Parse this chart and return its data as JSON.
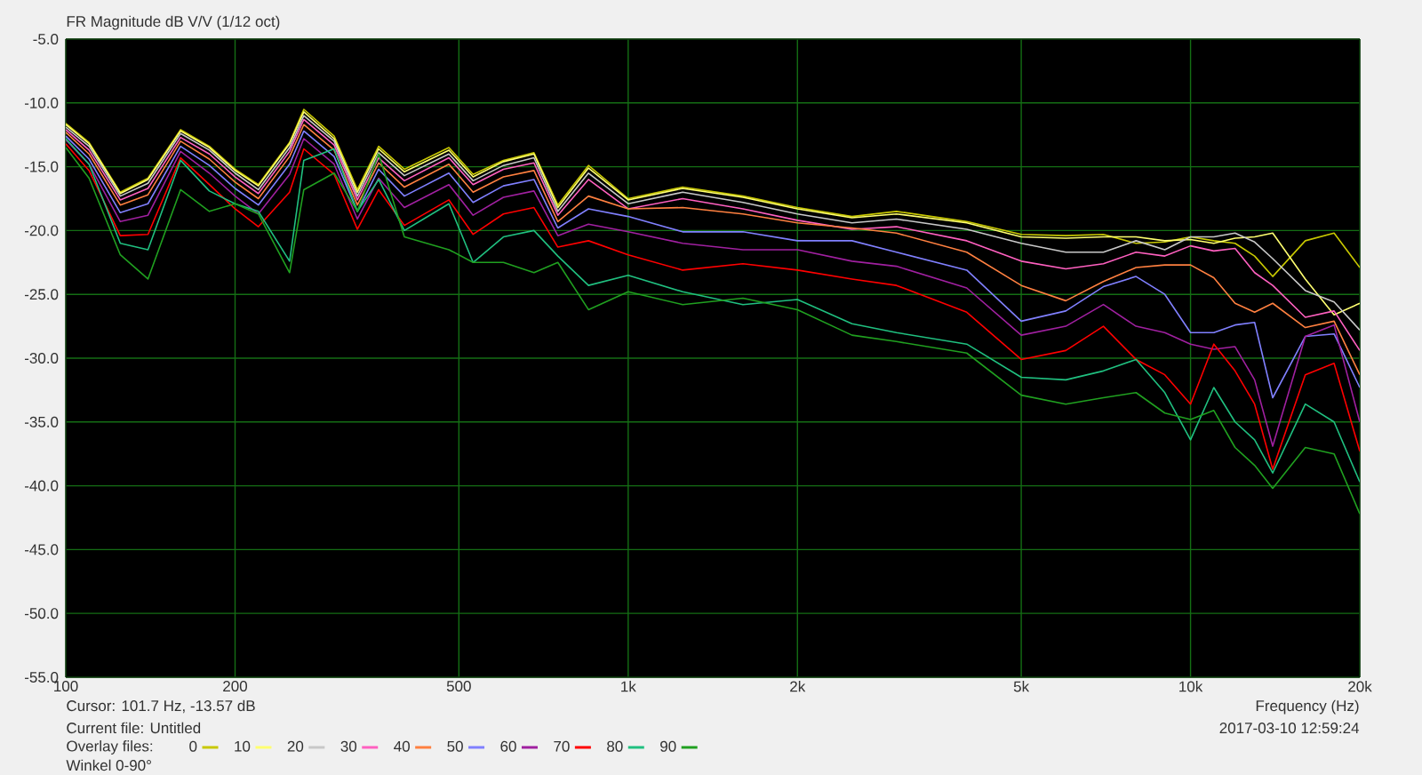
{
  "chart_data": {
    "type": "line",
    "title": "FR Magnitude dB V/V (1/12 oct)",
    "xlabel": "Frequency (Hz)",
    "legend_title": "Overlay files:",
    "annotations": [
      "Cursor: 101.7 Hz, -13.57 dB",
      "Current file: Untitled",
      "Winkel 0-90°",
      "2017-03-10 12:59:24"
    ],
    "log": "x",
    "grid": true,
    "legend": "bottom",
    "xlim": [
      100,
      20000
    ],
    "ylim": [
      -55,
      -5
    ],
    "xticks": [
      100,
      {
        "value": 200,
        "label": "200"
      },
      {
        "value": 500,
        "label": "500"
      },
      {
        "value": 1000,
        "label": "1k"
      },
      {
        "value": 2000,
        "label": "2k"
      },
      {
        "value": 5000,
        "label": "5k"
      },
      {
        "value": 10000,
        "label": "10k"
      },
      {
        "value": 20000,
        "label": "20k"
      }
    ],
    "yticks": [
      {
        "value": -55,
        "label": "-55.0"
      },
      {
        "value": -50,
        "label": "-50.0"
      },
      {
        "value": -45,
        "label": "-45.0"
      },
      {
        "value": -40,
        "label": "-40.0"
      },
      {
        "value": -35,
        "label": "-35.0"
      },
      {
        "value": -30,
        "label": "-30.0"
      },
      {
        "value": -25,
        "label": "-25.0"
      },
      {
        "value": -20,
        "label": "-20.0"
      },
      {
        "value": -15,
        "label": "-15.0"
      },
      {
        "value": -10,
        "label": "-10.0"
      },
      {
        "value": -5,
        "label": "-5.0"
      }
    ],
    "x": [
      100,
      110,
      125,
      140,
      160,
      180,
      200,
      220,
      250,
      265,
      300,
      330,
      360,
      400,
      480,
      530,
      600,
      680,
      750,
      850,
      1000,
      1250,
      1600,
      2000,
      2500,
      3000,
      4000,
      5000,
      6000,
      7000,
      8000,
      9000,
      10000,
      11000,
      12000,
      13000,
      14000,
      16000,
      18000,
      20000
    ],
    "series": [
      {
        "name": "0",
        "color": "#c8c800",
        "values": [
          -11.6,
          -13.1,
          -17.0,
          -15.9,
          -12.1,
          -13.4,
          -15.2,
          -16.4,
          -13.1,
          -10.5,
          -12.6,
          -16.8,
          -13.4,
          -15.2,
          -13.5,
          -15.6,
          -14.5,
          -13.9,
          -18.0,
          -14.9,
          -17.5,
          -16.6,
          -17.3,
          -18.2,
          -18.9,
          -18.5,
          -19.3,
          -20.3,
          -20.4,
          -20.3,
          -21.0,
          -20.9,
          -20.5,
          -20.8,
          -21.0,
          -22.0,
          -23.6,
          -20.8,
          -20.2,
          -22.9
        ]
      },
      {
        "name": "10",
        "color": "#ffff70",
        "values": [
          -11.7,
          -13.2,
          -17.1,
          -16.0,
          -12.2,
          -13.5,
          -15.3,
          -16.5,
          -13.2,
          -10.7,
          -12.8,
          -17.0,
          -13.6,
          -15.4,
          -13.7,
          -15.8,
          -14.6,
          -14.0,
          -18.2,
          -15.1,
          -17.6,
          -16.7,
          -17.4,
          -18.3,
          -19.0,
          -18.7,
          -19.4,
          -20.5,
          -20.6,
          -20.5,
          -20.5,
          -20.8,
          -20.7,
          -21.0,
          -20.6,
          -20.5,
          -20.2,
          -23.8,
          -26.6,
          -25.7
        ]
      },
      {
        "name": "20",
        "color": "#c8c8c8",
        "values": [
          -11.9,
          -13.4,
          -17.3,
          -16.3,
          -12.4,
          -13.7,
          -15.5,
          -16.8,
          -13.5,
          -11.0,
          -13.0,
          -17.3,
          -13.9,
          -15.7,
          -14.0,
          -16.1,
          -14.9,
          -14.3,
          -18.5,
          -15.5,
          -17.9,
          -17.0,
          -17.8,
          -18.7,
          -19.4,
          -19.1,
          -19.9,
          -21.0,
          -21.7,
          -21.7,
          -20.8,
          -21.5,
          -20.5,
          -20.5,
          -20.2,
          -20.9,
          -22.2,
          -24.7,
          -25.6,
          -27.8
        ]
      },
      {
        "name": "30",
        "color": "#ff60c0",
        "values": [
          -12.1,
          -13.7,
          -17.6,
          -16.7,
          -12.7,
          -14.0,
          -15.8,
          -17.1,
          -13.8,
          -11.3,
          -13.3,
          -17.6,
          -14.3,
          -16.1,
          -14.3,
          -16.4,
          -15.2,
          -14.7,
          -18.8,
          -16.0,
          -18.3,
          -17.5,
          -18.3,
          -19.2,
          -19.9,
          -19.7,
          -20.8,
          -22.4,
          -23.0,
          -22.6,
          -21.7,
          -22.0,
          -21.2,
          -21.6,
          -21.4,
          -23.3,
          -24.3,
          -26.8,
          -26.3,
          -29.4
        ]
      },
      {
        "name": "40",
        "color": "#ff8040",
        "values": [
          -12.3,
          -14.0,
          -18.0,
          -17.2,
          -13.0,
          -14.4,
          -16.2,
          -17.5,
          -14.2,
          -11.7,
          -13.7,
          -18.0,
          -14.7,
          -16.6,
          -14.8,
          -17.0,
          -15.8,
          -15.3,
          -19.3,
          -17.3,
          -18.3,
          -18.2,
          -18.7,
          -19.4,
          -19.8,
          -20.2,
          -21.7,
          -24.3,
          -25.5,
          -24.0,
          -22.9,
          -22.7,
          -22.7,
          -23.7,
          -25.7,
          -26.4,
          -25.7,
          -27.6,
          -27.1,
          -31.3
        ]
      },
      {
        "name": "50",
        "color": "#8080ff",
        "values": [
          -12.6,
          -14.4,
          -18.6,
          -17.9,
          -13.4,
          -14.9,
          -16.7,
          -18.0,
          -14.8,
          -12.2,
          -14.2,
          -18.5,
          -15.2,
          -17.3,
          -15.5,
          -17.8,
          -16.5,
          -16.0,
          -19.8,
          -18.3,
          -18.9,
          -20.1,
          -20.1,
          -20.8,
          -20.8,
          -21.7,
          -23.1,
          -27.1,
          -26.3,
          -24.4,
          -23.6,
          -25.0,
          -28.0,
          -28.0,
          -27.4,
          -27.2,
          -33.1,
          -28.3,
          -28.1,
          -32.3
        ]
      },
      {
        "name": "60",
        "color": "#a020a0",
        "values": [
          -12.9,
          -14.8,
          -19.3,
          -18.8,
          -13.8,
          -15.5,
          -17.3,
          -18.7,
          -15.6,
          -12.8,
          -14.8,
          -19.1,
          -15.9,
          -18.2,
          -16.4,
          -18.8,
          -17.4,
          -16.9,
          -20.4,
          -19.5,
          -20.1,
          -21.0,
          -21.5,
          -21.5,
          -22.4,
          -22.8,
          -24.5,
          -28.2,
          -27.5,
          -25.8,
          -27.5,
          -28.0,
          -28.9,
          -29.3,
          -29.1,
          -31.7,
          -36.9,
          -28.3,
          -27.4,
          -35.0
        ]
      },
      {
        "name": "70",
        "color": "#ff0000",
        "values": [
          -13.2,
          -15.3,
          -20.4,
          -20.3,
          -14.3,
          -16.4,
          -18.3,
          -19.7,
          -17.0,
          -13.6,
          -15.6,
          -19.9,
          -16.8,
          -19.6,
          -17.6,
          -20.3,
          -18.7,
          -18.2,
          -21.3,
          -20.8,
          -21.9,
          -23.1,
          -22.6,
          -23.1,
          -23.8,
          -24.3,
          -26.4,
          -30.1,
          -29.4,
          -27.5,
          -30.1,
          -31.3,
          -33.6,
          -28.9,
          -31.0,
          -33.6,
          -38.7,
          -31.3,
          -30.4,
          -37.3
        ]
      },
      {
        "name": "80",
        "color": "#20c080",
        "values": [
          -12.8,
          -14.8,
          -21.0,
          -21.5,
          -14.5,
          -16.9,
          -17.9,
          -18.5,
          -22.4,
          -14.5,
          -13.6,
          -18.5,
          -16.0,
          -20.0,
          -17.9,
          -22.5,
          -20.5,
          -20.0,
          -22.0,
          -24.3,
          -23.5,
          -24.8,
          -25.8,
          -25.4,
          -27.3,
          -28.0,
          -28.9,
          -31.5,
          -31.7,
          -31.0,
          -30.1,
          -32.7,
          -36.4,
          -32.3,
          -35.0,
          -36.4,
          -39.0,
          -33.6,
          -35.0,
          -39.7
        ]
      },
      {
        "name": "90",
        "color": "#20a020",
        "values": [
          -13.5,
          -15.9,
          -21.9,
          -23.8,
          -16.8,
          -18.5,
          -17.9,
          -18.7,
          -23.3,
          -16.8,
          -15.5,
          -18.5,
          -14.0,
          -20.5,
          -21.5,
          -22.5,
          -22.5,
          -23.3,
          -22.5,
          -26.2,
          -24.8,
          -25.8,
          -25.3,
          -26.2,
          -28.2,
          -28.7,
          -29.6,
          -32.9,
          -33.6,
          -33.1,
          -32.7,
          -34.3,
          -34.8,
          -34.1,
          -37.0,
          -38.4,
          -40.2,
          -37.0,
          -37.5,
          -42.2
        ]
      }
    ]
  }
}
